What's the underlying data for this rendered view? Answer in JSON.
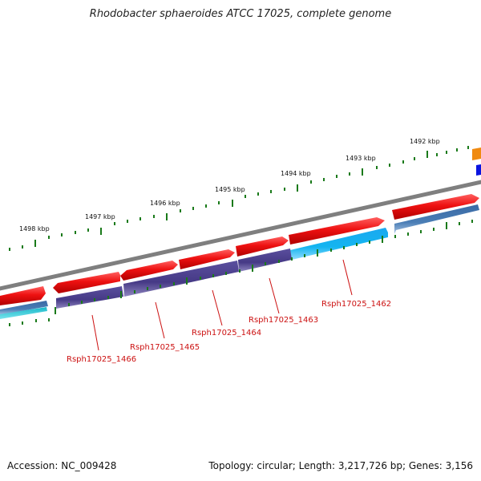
{
  "title": "Rhodobacter sphaeroides ATCC 17025, complete genome",
  "footer": {
    "accession": "Accession: NC_009428",
    "summary": "Topology: circular; Length: 3,217,726 bp; Genes: 3,156"
  },
  "colors": {
    "backbone": "#7f7f7f",
    "forward_cds": "#ee1111",
    "navy_cds": "#4a3f8a",
    "cyan_cds": "#14b5f0",
    "steel_cds": "#4a7db5",
    "ticks": "#1a7a1a",
    "label": "#cc1111"
  },
  "kbp_labels": [
    "1492 kbp",
    "1493 kbp",
    "1494 kbp",
    "1495 kbp",
    "1496 kbp",
    "1497 kbp",
    "1498 kbp"
  ],
  "gene_labels": [
    "Rsph17025_1462",
    "Rsph17025_1463",
    "Rsph17025_1464",
    "Rsph17025_1465",
    "Rsph17025_1466"
  ]
}
